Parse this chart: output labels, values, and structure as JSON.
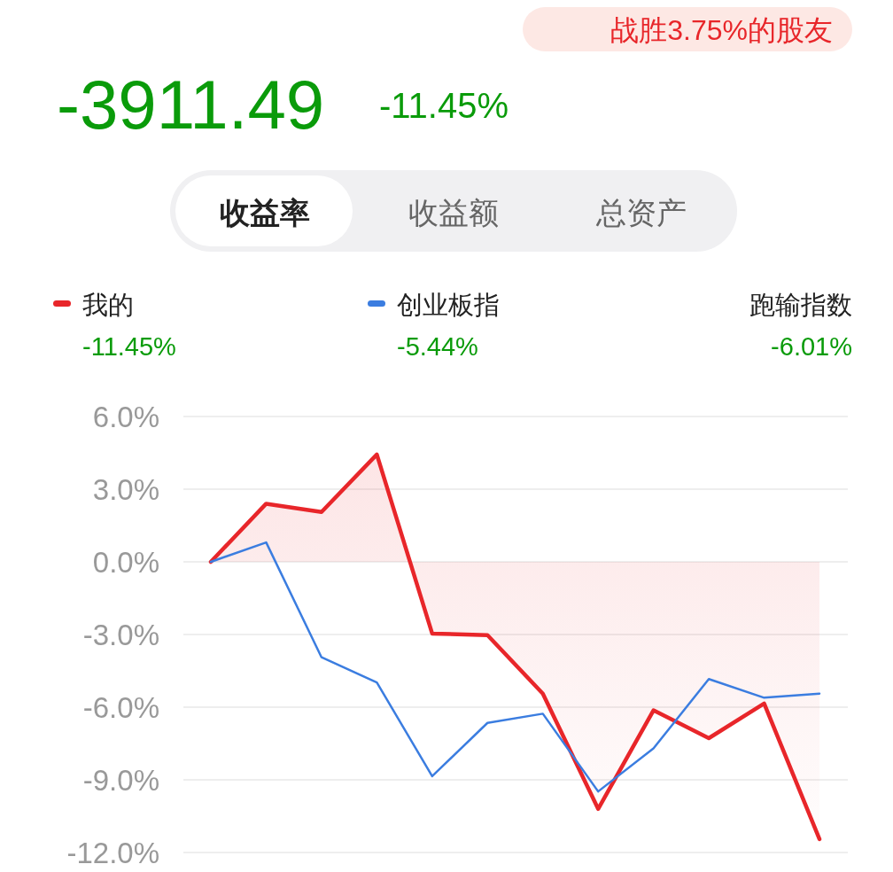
{
  "chart_data": {
    "type": "line",
    "title": "-3911.49",
    "subtitle": "-11.45%",
    "annotations": [
      "战胜3.75%的股友",
      "收益率",
      "收益额",
      "总资产",
      "跑输指数",
      "-11.45%",
      "-5.44%",
      "-6.01%"
    ],
    "categories": [
      null,
      null,
      null,
      null,
      null,
      null,
      null,
      null,
      null,
      null,
      null,
      null
    ],
    "series": [
      {
        "name": "我的",
        "type": "area",
        "color": "#e8262a",
        "values": [
          0,
          2.4,
          2.06,
          4.43,
          -2.96,
          -3.03,
          -5.44,
          -10.2,
          -6.13,
          -7.28,
          -5.85,
          -11.45
        ]
      },
      {
        "name": "创业板指",
        "type": "line",
        "color": "#3b7de0",
        "values": [
          0,
          0.8,
          -3.94,
          -4.98,
          -8.85,
          -6.65,
          -6.27,
          -9.48,
          -7.7,
          -4.84,
          -5.61,
          -5.44
        ]
      }
    ],
    "ylim": [
      -12,
      6
    ],
    "yticks": [
      {
        "value": 6,
        "label": "6.0%"
      },
      {
        "value": 3,
        "label": "3.0%"
      },
      {
        "value": 0,
        "label": "0.0%"
      },
      {
        "value": -3,
        "label": "-3.0%"
      },
      {
        "value": -6,
        "label": "-6.0%"
      },
      {
        "value": -9,
        "label": "-9.0%"
      },
      {
        "value": -12,
        "label": "-12.0%"
      }
    ],
    "grid": "y",
    "legend": "top"
  }
}
